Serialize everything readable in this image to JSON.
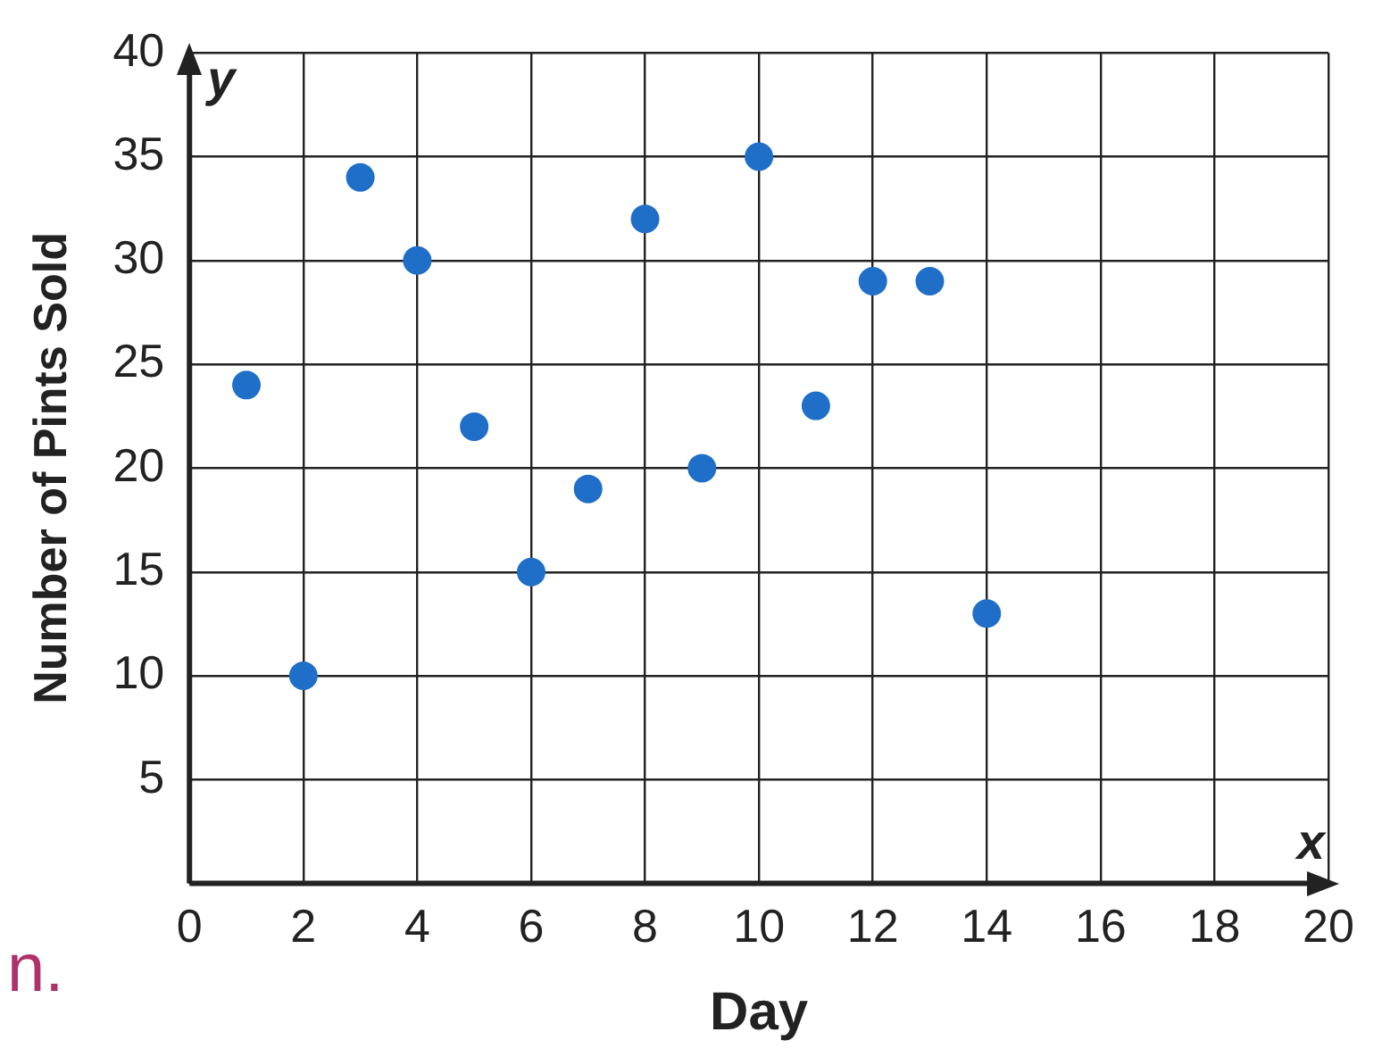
{
  "chart_data": {
    "type": "scatter",
    "xlabel": "Day",
    "ylabel": "Number of Pints Sold",
    "x": [
      1,
      2,
      3,
      4,
      5,
      6,
      7,
      8,
      9,
      10,
      11,
      12,
      13,
      14
    ],
    "series": [
      {
        "color": "#1f6fc8",
        "values": [
          24,
          10,
          34,
          30,
          22,
          15,
          19,
          32,
          20,
          35,
          23,
          29,
          29,
          13
        ]
      }
    ],
    "xlim": [
      0,
      20
    ],
    "xticks": [
      0,
      2,
      4,
      6,
      8,
      10,
      12,
      14,
      16,
      18,
      20
    ],
    "ylim": [
      0,
      40
    ],
    "yticks": [
      {
        "value": 0,
        "label": null
      },
      5,
      10,
      15,
      20,
      25,
      30,
      35,
      40
    ],
    "grid": true,
    "legend": false,
    "marker": "circle",
    "annotations": [
      "x",
      "y",
      "n."
    ]
  }
}
